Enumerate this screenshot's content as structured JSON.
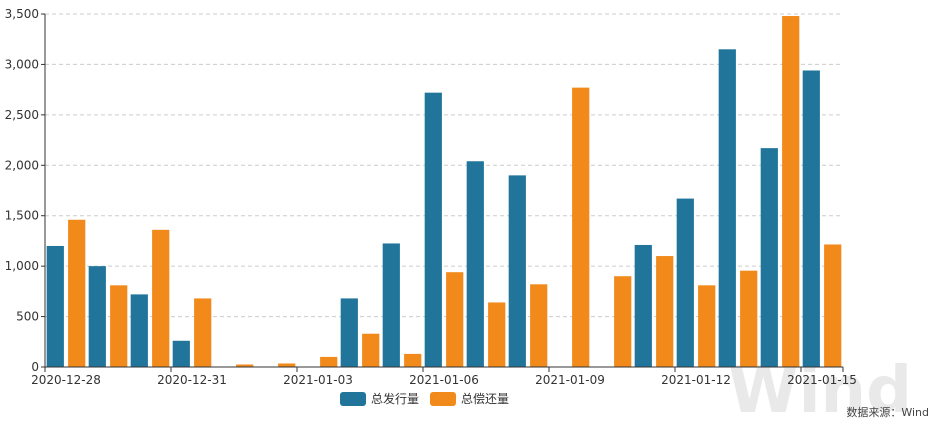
{
  "chart_data": {
    "type": "bar",
    "categories": [
      "2020-12-28",
      "2020-12-29",
      "2020-12-30",
      "2020-12-31",
      "2021-01-01",
      "2021-01-02",
      "2021-01-03",
      "2021-01-04",
      "2021-01-05",
      "2021-01-06",
      "2021-01-07",
      "2021-01-08",
      "2021-01-09",
      "2021-01-10",
      "2021-01-11",
      "2021-01-12",
      "2021-01-13",
      "2021-01-14",
      "2021-01-15"
    ],
    "x_tick_labels": [
      "2020-12-28",
      "2020-12-31",
      "2021-01-03",
      "2021-01-06",
      "2021-01-09",
      "2021-01-12",
      "2021-01-15"
    ],
    "x_tick_every": 3,
    "series": [
      {
        "name": "总发行量",
        "color": "#21759b",
        "values": [
          1200,
          1000,
          720,
          260,
          0,
          0,
          0,
          680,
          1225,
          2720,
          2040,
          1900,
          0,
          0,
          1210,
          1670,
          3150,
          2170,
          2940
        ]
      },
      {
        "name": "总偿还量",
        "color": "#f28a1b",
        "values": [
          1460,
          810,
          1360,
          680,
          25,
          35,
          100,
          330,
          130,
          940,
          640,
          820,
          2770,
          900,
          1100,
          810,
          955,
          3480,
          1215
        ]
      }
    ],
    "y_ticks": [
      "0",
      "500",
      "1,000",
      "1,500",
      "2,000",
      "2,500",
      "3,000",
      "3,500"
    ],
    "ylim": [
      0,
      3500
    ],
    "grid": "horizontal-dashed",
    "legend_position": "bottom-center",
    "title": "",
    "xlabel": "",
    "ylabel": ""
  },
  "source_note": "数据来源：Wind",
  "watermark": "Wind"
}
